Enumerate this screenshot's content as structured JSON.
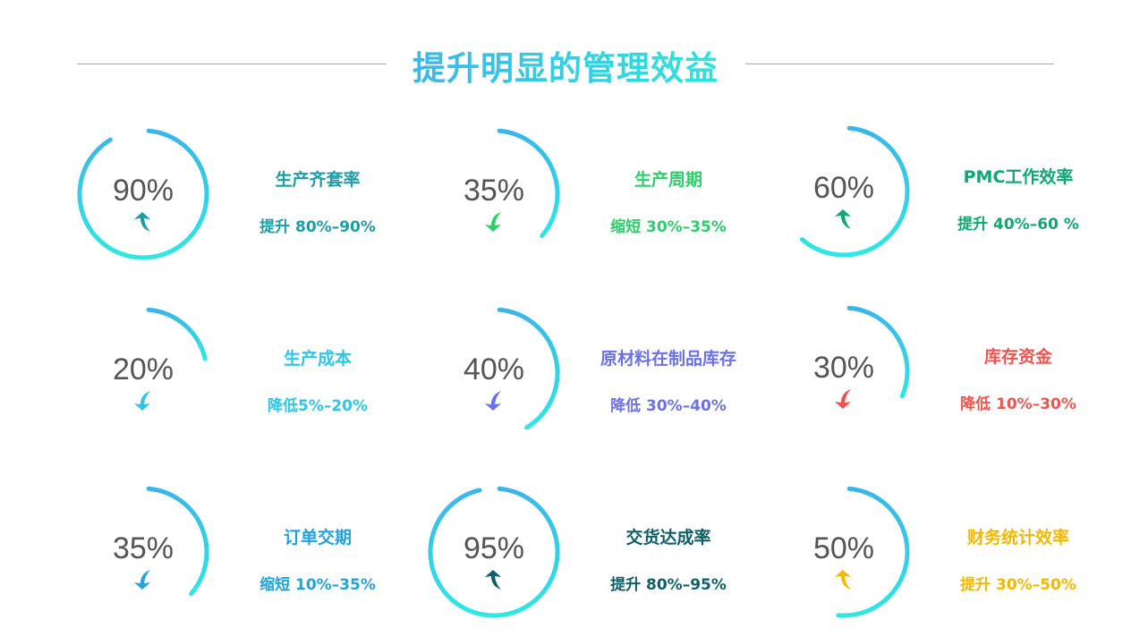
{
  "title": "提升明显的管理效益",
  "gradient": {
    "start": "#3bb5ea",
    "end": "#2de8e4"
  },
  "items": [
    {
      "value": "90%",
      "percent": 90,
      "name": "生产齐套率",
      "range": "提升 80%–90%",
      "direction": "up",
      "color": "#1a9ea8"
    },
    {
      "value": "35%",
      "percent": 35,
      "name": "生产周期",
      "range": "缩短 30%–35%",
      "direction": "down",
      "color": "#2dcf6a"
    },
    {
      "value": "60%",
      "percent": 60,
      "name": "PMC工作效率",
      "range": "提升 40%–60 %",
      "direction": "up",
      "color": "#0fa870"
    },
    {
      "value": "20%",
      "percent": 20,
      "name": "生产成本",
      "range": "降低5%–20%",
      "direction": "down",
      "color": "#2ec6e8"
    },
    {
      "value": "40%",
      "percent": 40,
      "name": "原材料在制品库存",
      "range": "降低 30%–40%",
      "direction": "down",
      "color": "#6b72e8"
    },
    {
      "value": "30%",
      "percent": 30,
      "name": "库存资金",
      "range": "降低 10%–30%",
      "direction": "down",
      "color": "#f0544b"
    },
    {
      "value": "35%",
      "percent": 35,
      "name": "订单交期",
      "range": "缩短 10%–35%",
      "direction": "down",
      "color": "#22a3de"
    },
    {
      "value": "95%",
      "percent": 95,
      "name": "交货达成率",
      "range": "提升 80%–95%",
      "direction": "up",
      "color": "#0e5f6a"
    },
    {
      "value": "50%",
      "percent": 50,
      "name": "财务统计效率",
      "range": "提升 30%–50%",
      "direction": "up",
      "color": "#f5b800"
    }
  ]
}
